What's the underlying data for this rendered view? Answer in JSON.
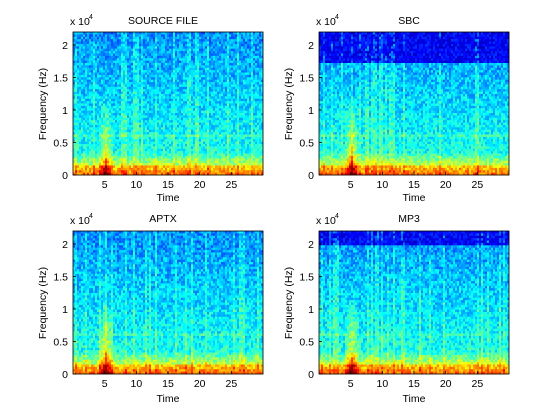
{
  "chart_data": [
    {
      "type": "heatmap",
      "title": "SOURCE FILE",
      "xlabel": "Time",
      "ylabel": "Frequency (Hz)",
      "xticks": [
        "5",
        "10",
        "15",
        "20",
        "25"
      ],
      "xtick_values": [
        5,
        10,
        15,
        20,
        25
      ],
      "xlim": [
        0,
        30
      ],
      "yticks": [
        "0",
        "0.5",
        "1",
        "1.5",
        "2"
      ],
      "ytick_values": [
        0,
        0.5,
        1,
        1.5,
        2
      ],
      "ylim": [
        0,
        2.2
      ],
      "y_multiplier_base": "x 10",
      "y_multiplier_exp": "4",
      "colormap": "jet",
      "cutoff_hz": null,
      "cutoff_hz_ticks": null,
      "transient_time": 5,
      "description_level": "energy concentrated below 0.3 x10^4 Hz, broadband transient near t=5"
    },
    {
      "type": "heatmap",
      "title": "SBC",
      "xlabel": "Time",
      "ylabel": "Frequency (Hz)",
      "xticks": [
        "5",
        "10",
        "15",
        "20",
        "25"
      ],
      "xtick_values": [
        5,
        10,
        15,
        20,
        25
      ],
      "xlim": [
        0,
        30
      ],
      "yticks": [
        "0",
        "0.5",
        "1",
        "1.5",
        "2"
      ],
      "ytick_values": [
        0,
        0.5,
        1,
        1.5,
        2
      ],
      "ylim": [
        0,
        2.2
      ],
      "y_multiplier_base": "x 10",
      "y_multiplier_exp": "4",
      "colormap": "jet",
      "cutoff_hz_ticks": 1.72,
      "transient_time": 5
    },
    {
      "type": "heatmap",
      "title": "APTX",
      "xlabel": "Time",
      "ylabel": "Frequency (Hz)",
      "xticks": [
        "5",
        "10",
        "15",
        "20",
        "25"
      ],
      "xtick_values": [
        5,
        10,
        15,
        20,
        25
      ],
      "xlim": [
        0,
        30
      ],
      "yticks": [
        "0",
        "0.5",
        "1",
        "1.5",
        "2"
      ],
      "ytick_values": [
        0,
        0.5,
        1,
        1.5,
        2
      ],
      "ylim": [
        0,
        2.2
      ],
      "y_multiplier_base": "x 10",
      "y_multiplier_exp": "4",
      "colormap": "jet",
      "cutoff_hz_ticks": null,
      "transient_time": 5
    },
    {
      "type": "heatmap",
      "title": "MP3",
      "xlabel": "Time",
      "ylabel": "Frequency (Hz)",
      "xticks": [
        "5",
        "10",
        "15",
        "20",
        "25"
      ],
      "xtick_values": [
        5,
        10,
        15,
        20,
        25
      ],
      "xlim": [
        0,
        30
      ],
      "yticks": [
        "0",
        "0.5",
        "1",
        "1.5",
        "2"
      ],
      "ytick_values": [
        0,
        0.5,
        1,
        1.5,
        2
      ],
      "ylim": [
        0,
        2.2
      ],
      "y_multiplier_base": "x 10",
      "y_multiplier_exp": "4",
      "colormap": "jet",
      "cutoff_hz_ticks": 1.98,
      "transient_time": 5
    }
  ]
}
